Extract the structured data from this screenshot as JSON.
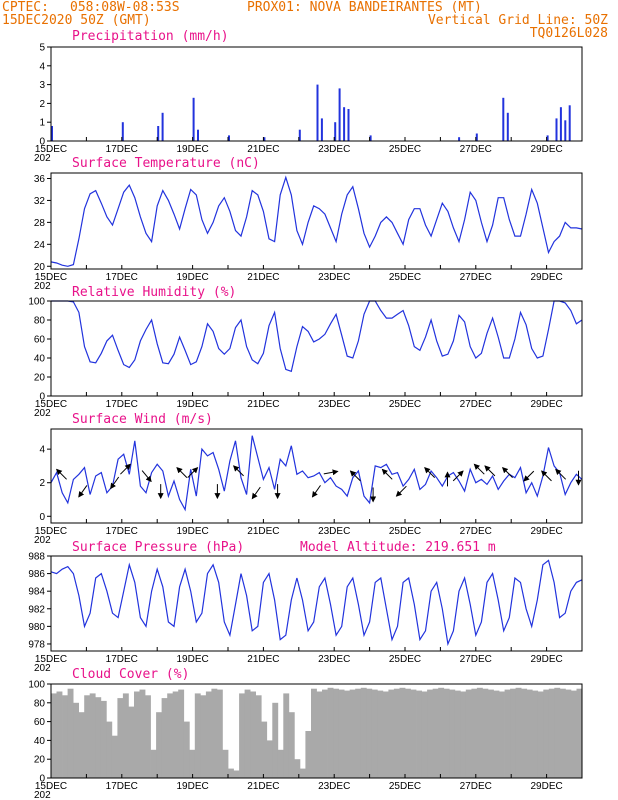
{
  "header": {
    "line1_left": "CPTEC:",
    "coords": "058:08W-08:53S",
    "station": "PROX01: NOVA BANDEIRANTES (MT)",
    "datetime": "15DEC2020 50Z (GMT)",
    "grid_note": "Vertical Grid Line: 50Z",
    "model_code": "TQ0126L028"
  },
  "colors": {
    "header": "#e87000",
    "panel_title": "#e8128a",
    "series": "#2233dd",
    "cloud": "#a9a9a9",
    "wind_arrow": "#000000"
  },
  "x_axis": {
    "labels": [
      "15DEC",
      "17DEC",
      "19DEC",
      "21DEC",
      "23DEC",
      "25DEC",
      "27DEC",
      "29DEC"
    ],
    "first_label_prefix": "202",
    "start": "2020-12-15",
    "end": "2020-12-30"
  },
  "chart_data": [
    {
      "id": "precip",
      "type": "bar",
      "title": "Precipitation (mm/h)",
      "yticks": [
        0,
        1,
        2,
        3,
        4,
        5
      ],
      "ylim": [
        0,
        5
      ],
      "series": [
        {
          "x": [
            "2020-12-15T00",
            "2020-12-17T00",
            "2020-12-18T00",
            "2020-12-18T03",
            "2020-12-19T00",
            "2020-12-19T03",
            "2020-12-20T00",
            "2020-12-21T00",
            "2020-12-22T00",
            "2020-12-22T12",
            "2020-12-22T15",
            "2020-12-23T00",
            "2020-12-23T03",
            "2020-12-23T06",
            "2020-12-23T09",
            "2020-12-24T00",
            "2020-12-26T12",
            "2020-12-27T00",
            "2020-12-27T18",
            "2020-12-27T21",
            "2020-12-29T00",
            "2020-12-29T06",
            "2020-12-29T09",
            "2020-12-29T12",
            "2020-12-29T15"
          ],
          "values": [
            0.8,
            1.0,
            0.8,
            1.5,
            2.3,
            0.6,
            0.3,
            0.2,
            0.6,
            3.0,
            1.2,
            1.0,
            2.8,
            1.8,
            1.7,
            0.3,
            0.2,
            0.4,
            2.3,
            1.5,
            0.3,
            1.2,
            1.8,
            1.1,
            1.9
          ]
        }
      ]
    },
    {
      "id": "temp",
      "type": "line",
      "title": "Surface Temperature (nC)",
      "yticks": [
        20,
        24,
        28,
        32,
        36
      ],
      "ylim": [
        19.5,
        37
      ],
      "series": [
        {
          "values": [
            20.8,
            20.6,
            20.2,
            20.0,
            20.3,
            25.0,
            30.5,
            33.2,
            33.8,
            31.5,
            29.0,
            27.5,
            30.5,
            33.5,
            34.8,
            32.5,
            29.0,
            26.0,
            24.5,
            31.0,
            33.8,
            32.0,
            29.5,
            26.8,
            30.5,
            34.0,
            33.0,
            28.5,
            26.0,
            28.0,
            31.0,
            32.5,
            30.0,
            26.5,
            25.5,
            29.0,
            33.8,
            33.0,
            30.0,
            25.0,
            24.5,
            33.0,
            36.2,
            33.0,
            26.5,
            24.0,
            28.0,
            31.0,
            30.5,
            29.5,
            27.0,
            24.5,
            29.5,
            33.0,
            34.5,
            30.5,
            26.0,
            23.5,
            25.5,
            28.0,
            29.0,
            28.0,
            26.0,
            24.0,
            28.5,
            30.5,
            30.5,
            27.5,
            25.5,
            28.5,
            31.5,
            30.0,
            27.0,
            24.5,
            28.5,
            33.5,
            32.0,
            28.0,
            24.5,
            27.5,
            32.5,
            32.5,
            28.5,
            25.5,
            25.5,
            29.5,
            34.0,
            31.5,
            27.0,
            22.5,
            24.5,
            25.5,
            28.0,
            27.0,
            27.0,
            26.8
          ]
        }
      ]
    },
    {
      "id": "rh",
      "type": "line",
      "title": "Relative Humidity (%)",
      "yticks": [
        0,
        20,
        40,
        60,
        80,
        100
      ],
      "ylim": [
        0,
        100
      ],
      "series": [
        {
          "values": [
            100,
            100,
            100,
            100,
            99,
            88,
            52,
            36,
            35,
            45,
            58,
            64,
            48,
            33,
            30,
            38,
            58,
            70,
            80,
            55,
            35,
            34,
            44,
            62,
            48,
            33,
            36,
            52,
            76,
            68,
            50,
            44,
            50,
            72,
            80,
            52,
            38,
            34,
            45,
            74,
            88,
            50,
            28,
            26,
            52,
            73,
            68,
            57,
            60,
            65,
            76,
            86,
            64,
            42,
            40,
            58,
            86,
            100,
            100,
            90,
            82,
            82,
            86,
            90,
            74,
            52,
            48,
            62,
            80,
            58,
            42,
            44,
            58,
            85,
            78,
            52,
            40,
            45,
            66,
            82,
            62,
            40,
            40,
            60,
            88,
            75,
            50,
            40,
            42,
            70,
            100,
            100,
            98,
            90,
            76,
            80
          ]
        }
      ]
    },
    {
      "id": "wind",
      "type": "line",
      "title": "Surface Wind (m/s)",
      "yticks": [
        0,
        2,
        4
      ],
      "ylim": [
        -0.4,
        5.2
      ],
      "series": [
        {
          "values": [
            2.0,
            2.6,
            1.4,
            0.8,
            2.2,
            2.5,
            2.9,
            1.3,
            2.4,
            2.6,
            1.4,
            1.8,
            3.4,
            3.7,
            2.5,
            4.5,
            1.8,
            1.4,
            2.6,
            3.1,
            2.7,
            1.2,
            2.1,
            1.0,
            0.4,
            2.8,
            1.2,
            4.0,
            3.6,
            3.8,
            2.8,
            1.5,
            3.3,
            4.5,
            2.3,
            1.3,
            4.8,
            3.5,
            2.2,
            2.9,
            1.6,
            3.4,
            3.0,
            4.2,
            2.5,
            2.7,
            2.3,
            2.4,
            2.6,
            2.0,
            2.3,
            1.8,
            1.6,
            1.2,
            2.3,
            2.7,
            1.2,
            0.8,
            3.0,
            2.9,
            3.1,
            2.5,
            2.6,
            1.8,
            2.2,
            2.8,
            1.6,
            1.9,
            2.7,
            2.3,
            1.8,
            2.4,
            2.6,
            2.1,
            1.5,
            2.8,
            2.0,
            2.2,
            1.9,
            2.4,
            1.6,
            2.1,
            2.5,
            2.3,
            2.9,
            1.4,
            2.0,
            1.2,
            2.4,
            4.1,
            3.0,
            2.6,
            1.3,
            2.0,
            2.5,
            2.2
          ]
        }
      ],
      "arrows": [
        {
          "day": 0.3,
          "speed": 2.5,
          "dir": 315
        },
        {
          "day": 0.9,
          "speed": 1.5,
          "dir": 215
        },
        {
          "day": 1.8,
          "speed": 2.0,
          "dir": 215
        },
        {
          "day": 2.1,
          "speed": 2.8,
          "dir": 45
        },
        {
          "day": 2.7,
          "speed": 2.4,
          "dir": 140
        },
        {
          "day": 3.1,
          "speed": 1.5,
          "dir": 180
        },
        {
          "day": 3.7,
          "speed": 2.6,
          "dir": 315
        },
        {
          "day": 4.0,
          "speed": 2.6,
          "dir": 45
        },
        {
          "day": 4.7,
          "speed": 1.5,
          "dir": 180
        },
        {
          "day": 5.3,
          "speed": 2.7,
          "dir": 315
        },
        {
          "day": 5.8,
          "speed": 1.4,
          "dir": 215
        },
        {
          "day": 6.4,
          "speed": 1.5,
          "dir": 180
        },
        {
          "day": 7.5,
          "speed": 1.5,
          "dir": 215
        },
        {
          "day": 7.9,
          "speed": 2.6,
          "dir": 80
        },
        {
          "day": 8.6,
          "speed": 2.4,
          "dir": 315
        },
        {
          "day": 9.1,
          "speed": 1.3,
          "dir": 180
        },
        {
          "day": 9.5,
          "speed": 2.5,
          "dir": 315
        },
        {
          "day": 9.9,
          "speed": 1.5,
          "dir": 225
        },
        {
          "day": 10.7,
          "speed": 2.6,
          "dir": 315
        },
        {
          "day": 11.2,
          "speed": 2.2,
          "dir": 0
        },
        {
          "day": 11.5,
          "speed": 2.4,
          "dir": 45
        },
        {
          "day": 12.1,
          "speed": 2.8,
          "dir": 315
        },
        {
          "day": 12.4,
          "speed": 2.7,
          "dir": 315
        },
        {
          "day": 12.9,
          "speed": 2.6,
          "dir": 315
        },
        {
          "day": 13.5,
          "speed": 2.4,
          "dir": 225
        },
        {
          "day": 14.0,
          "speed": 2.4,
          "dir": 315
        },
        {
          "day": 14.4,
          "speed": 2.5,
          "dir": 315
        },
        {
          "day": 14.9,
          "speed": 2.3,
          "dir": 180
        }
      ]
    },
    {
      "id": "pressure",
      "type": "line",
      "title": "Surface Pressure (hPa)",
      "annotation": "Model Altitude: 219.651 m",
      "yticks": [
        978,
        980,
        982,
        984,
        986,
        988
      ],
      "ylim": [
        977.2,
        988
      ],
      "series": [
        {
          "values": [
            986.2,
            986.0,
            986.5,
            986.8,
            986.0,
            983.5,
            980.0,
            981.5,
            985.5,
            986.0,
            984.0,
            981.5,
            981.0,
            984.0,
            987.0,
            985.0,
            981.0,
            980.0,
            984.0,
            986.5,
            984.5,
            980.5,
            980.0,
            984.5,
            986.5,
            984.0,
            980.5,
            981.5,
            986.0,
            987.0,
            985.0,
            980.5,
            979.0,
            982.5,
            986.0,
            983.5,
            979.5,
            980.0,
            985.0,
            986.0,
            983.0,
            978.5,
            979.0,
            983.0,
            985.5,
            983.0,
            979.5,
            980.5,
            984.5,
            985.5,
            982.5,
            979.0,
            980.0,
            984.5,
            985.5,
            982.5,
            979.0,
            980.5,
            985.0,
            985.5,
            982.0,
            978.5,
            980.0,
            985.0,
            985.5,
            982.5,
            978.5,
            979.5,
            984.0,
            985.0,
            982.0,
            978.0,
            979.5,
            984.0,
            985.5,
            982.5,
            979.0,
            980.5,
            985.0,
            986.0,
            983.0,
            979.5,
            981.0,
            985.5,
            985.0,
            982.0,
            980.0,
            983.0,
            987.0,
            987.5,
            985.0,
            981.0,
            981.5,
            984.0,
            985.0,
            985.3
          ]
        }
      ]
    },
    {
      "id": "cloud",
      "type": "area",
      "title": "Cloud Cover (%)",
      "yticks": [
        0,
        20,
        40,
        60,
        80,
        100
      ],
      "ylim": [
        0,
        100
      ],
      "series": [
        {
          "values": [
            90,
            92,
            88,
            95,
            80,
            70,
            88,
            90,
            86,
            82,
            60,
            45,
            85,
            90,
            76,
            92,
            94,
            88,
            30,
            70,
            85,
            90,
            92,
            94,
            60,
            30,
            90,
            88,
            92,
            95,
            94,
            30,
            10,
            8,
            90,
            94,
            92,
            88,
            60,
            40,
            80,
            30,
            90,
            70,
            20,
            10,
            50,
            95,
            92,
            94,
            96,
            95,
            94,
            93,
            94,
            95,
            96,
            95,
            94,
            93,
            92,
            94,
            95,
            96,
            95,
            94,
            93,
            92,
            94,
            95,
            96,
            95,
            94,
            93,
            92,
            94,
            95,
            96,
            95,
            94,
            93,
            92,
            94,
            95,
            96,
            95,
            94,
            93,
            92,
            94,
            95,
            96,
            95,
            94,
            93,
            95
          ]
        }
      ]
    }
  ]
}
